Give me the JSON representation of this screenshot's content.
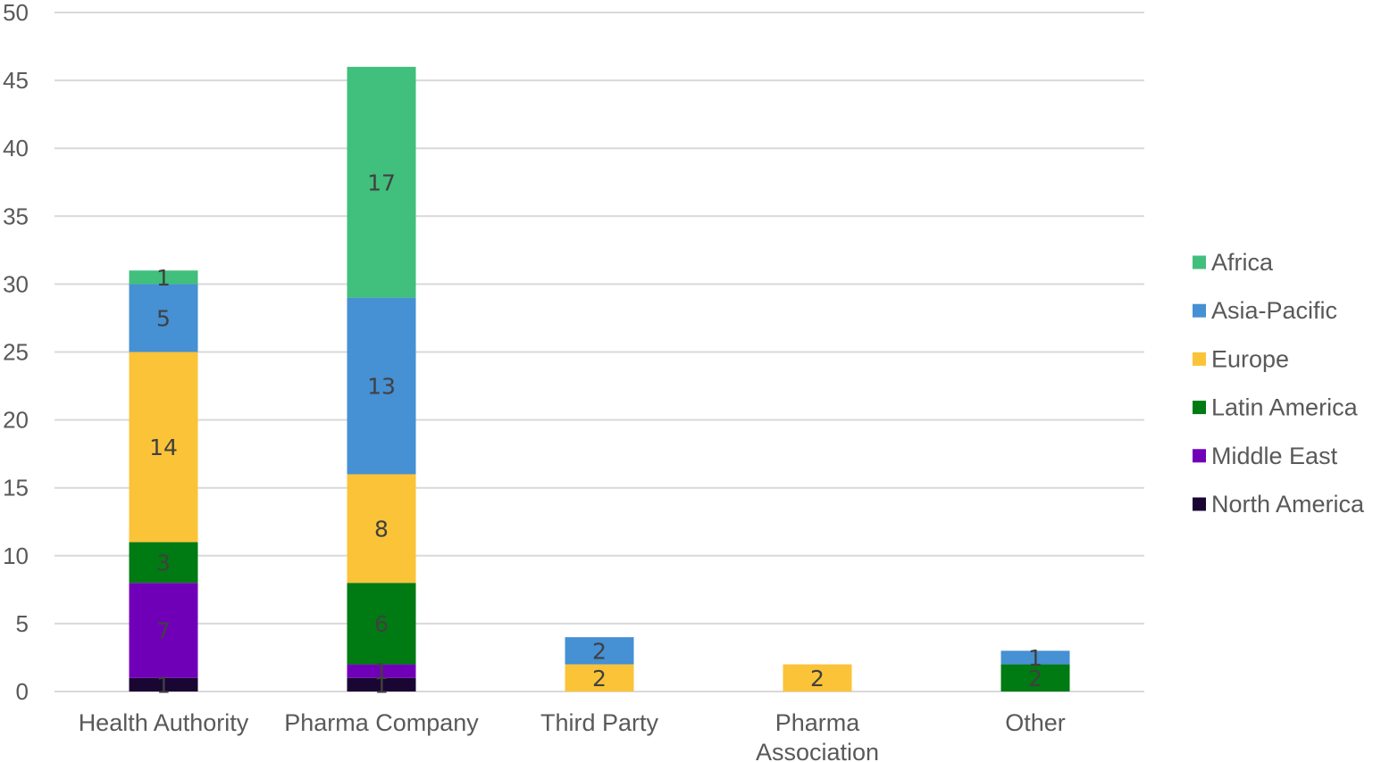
{
  "chart_data": {
    "type": "bar",
    "stacked": true,
    "title": "",
    "xlabel": "",
    "ylabel": "",
    "ylim": [
      0,
      50
    ],
    "yticks": [
      0,
      5,
      10,
      15,
      20,
      25,
      30,
      35,
      40,
      45,
      50
    ],
    "grid": true,
    "legend_position": "right",
    "categories": [
      [
        "Health Authority"
      ],
      [
        "Pharma Company"
      ],
      [
        "Third Party"
      ],
      [
        "Pharma",
        "Association"
      ],
      [
        "Other"
      ]
    ],
    "series": [
      {
        "name": "North America",
        "color": "#1a0633",
        "values": [
          1,
          1,
          0,
          0,
          0
        ]
      },
      {
        "name": "Middle East",
        "color": "#7000b8",
        "values": [
          7,
          1,
          0,
          0,
          0
        ]
      },
      {
        "name": "Latin America",
        "color": "#007a12",
        "values": [
          3,
          6,
          0,
          0,
          2
        ]
      },
      {
        "name": "Europe",
        "color": "#fbc338",
        "values": [
          14,
          8,
          2,
          2,
          0
        ]
      },
      {
        "name": "Asia-Pacific",
        "color": "#4690d4",
        "values": [
          5,
          13,
          2,
          0,
          1
        ]
      },
      {
        "name": "Africa",
        "color": "#41bf7c",
        "values": [
          1,
          17,
          0,
          0,
          0
        ]
      }
    ],
    "legend_order": [
      "Africa",
      "Asia-Pacific",
      "Europe",
      "Latin America",
      "Middle East",
      "North America"
    ],
    "colors": {
      "gridline": "#d9d9d9",
      "axis_text": "#595959",
      "data_label": "#404040"
    }
  }
}
